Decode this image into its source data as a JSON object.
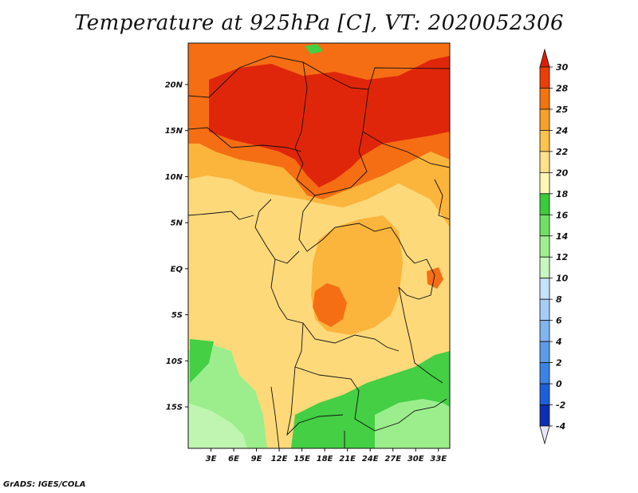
{
  "title": "Temperature at 925hPa [C], VT: 2020052306",
  "credit": "GrADS: IGES/COLA",
  "map": {
    "lon_range": [
      0,
      34.5
    ],
    "lat_range": [
      -19.5,
      24.5
    ],
    "lon_ticks": [
      "3E",
      "6E",
      "9E",
      "12E",
      "15E",
      "18E",
      "21E",
      "24E",
      "27E",
      "30E",
      "33E"
    ],
    "lat_ticks": [
      "20N",
      "15N",
      "10N",
      "5N",
      "EQ",
      "5S",
      "10S",
      "15S"
    ]
  },
  "colorbar": {
    "levels": [
      "-4",
      "-2",
      "0",
      "2",
      "4",
      "6",
      "8",
      "10",
      "12",
      "14",
      "16",
      "18",
      "20",
      "22",
      "24",
      "25",
      "28",
      "30"
    ],
    "colors": [
      "#0a0a78",
      "#0b2fb0",
      "#1d5fd8",
      "#3b82e6",
      "#5c9be8",
      "#80b5ef",
      "#a6cdf5",
      "#c5e2fa",
      "#c8f5c0",
      "#9ef08e",
      "#6fe064",
      "#3bcc3b",
      "#fff6b4",
      "#ffe28a",
      "#fdc24f",
      "#f7a02a",
      "#f37310",
      "#ea3e06",
      "#dd1c06"
    ]
  },
  "colors": {
    "hot": "#e0260a",
    "warm": "#f56e14",
    "mid": "#fbb43c",
    "mild": "#fdd97a",
    "cool_green": "#44cf44",
    "light_green": "#9cee8c",
    "pale_green": "#bff5b0",
    "border": "#111111"
  }
}
